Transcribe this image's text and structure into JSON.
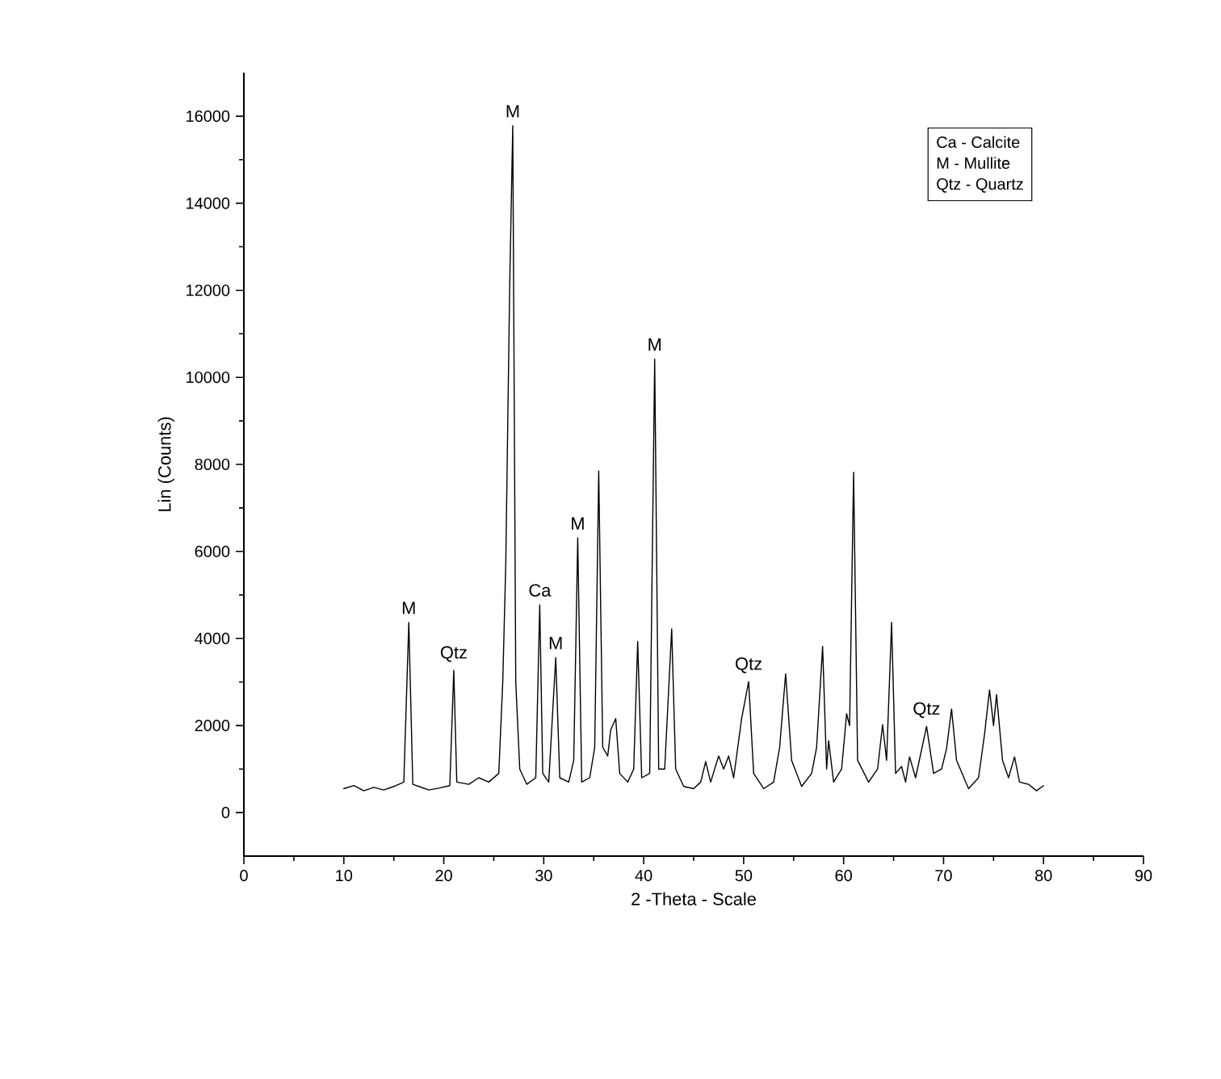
{
  "chart_data": {
    "type": "line",
    "xlabel": "2 -Theta - Scale",
    "ylabel": "Lin (Counts)",
    "xlim": [
      0,
      90
    ],
    "xticks": [
      0,
      10,
      20,
      30,
      40,
      50,
      60,
      70,
      80,
      90
    ],
    "ylim": [
      -1000,
      17000
    ],
    "yticks": [
      0,
      2000,
      4000,
      6000,
      8000,
      10000,
      12000,
      14000,
      16000
    ],
    "marker": "none",
    "line_style": "solid",
    "series": [
      {
        "color": "#000000",
        "x": [
          10,
          11,
          12,
          13,
          14,
          15,
          16.0,
          16.5,
          16.9,
          17.5,
          18.5,
          19.5,
          20.6,
          21.0,
          21.3,
          22.5,
          23.5,
          24.5,
          25.5,
          25.9,
          26.2,
          26.6,
          26.9,
          27.2,
          27.6,
          28.3,
          29.2,
          29.6,
          29.9,
          30.5,
          31.2,
          31.6,
          32.5,
          33.0,
          33.4,
          33.8,
          34.6,
          35.1,
          35.5,
          35.9,
          36.4,
          36.7,
          37.2,
          37.6,
          38.4,
          39.0,
          39.4,
          39.8,
          40.6,
          41.1,
          41.5,
          42.1,
          42.8,
          43.2,
          44.0,
          45.0,
          45.7,
          46.2,
          46.7,
          47.5,
          48.0,
          48.5,
          49.0,
          49.8,
          50.5,
          51.0,
          52.0,
          53.0,
          53.6,
          54.2,
          54.8,
          55.8,
          56.8,
          57.3,
          57.9,
          58.3,
          58.5,
          59.0,
          59.8,
          60.3,
          60.6,
          61.0,
          61.4,
          62.5,
          63.4,
          63.9,
          64.3,
          64.8,
          65.2,
          65.8,
          66.2,
          66.6,
          67.2,
          68.3,
          69.0,
          69.8,
          70.3,
          70.8,
          71.3,
          72.5,
          73.5,
          74.1,
          74.6,
          75.0,
          75.3,
          75.9,
          76.5,
          77.1,
          77.6,
          78.5,
          79.3,
          80.0
        ],
        "values": [
          550,
          620,
          500,
          580,
          520,
          600,
          700,
          4370,
          650,
          600,
          520,
          560,
          620,
          3270,
          700,
          650,
          800,
          700,
          900,
          3000,
          5700,
          12180,
          15780,
          3000,
          1000,
          650,
          800,
          4770,
          900,
          700,
          3560,
          800,
          700,
          1200,
          6310,
          700,
          800,
          1500,
          7850,
          1500,
          1300,
          1900,
          2160,
          900,
          700,
          1000,
          3930,
          800,
          900,
          10420,
          1000,
          1000,
          4220,
          1000,
          600,
          550,
          700,
          1170,
          700,
          1300,
          1000,
          1300,
          800,
          2160,
          3010,
          900,
          550,
          700,
          1500,
          3190,
          1200,
          600,
          900,
          1500,
          3820,
          1000,
          1650,
          700,
          1000,
          2270,
          2000,
          7820,
          1200,
          700,
          1000,
          2020,
          1200,
          4370,
          900,
          1060,
          700,
          1280,
          800,
          1980,
          900,
          1000,
          1470,
          2380,
          1200,
          550,
          800,
          1800,
          2820,
          2000,
          2710,
          1200,
          800,
          1280,
          700,
          650,
          500,
          620
        ]
      }
    ],
    "annotations": [
      {
        "text": "M",
        "x": 16.5,
        "y": 4370
      },
      {
        "text": "Qtz",
        "x": 21.0,
        "y": 3270
      },
      {
        "text": "M",
        "x": 26.9,
        "y": 15780
      },
      {
        "text": "Ca",
        "x": 29.6,
        "y": 4770
      },
      {
        "text": "M",
        "x": 31.2,
        "y": 3560
      },
      {
        "text": "M",
        "x": 33.4,
        "y": 6310
      },
      {
        "text": "M",
        "x": 41.1,
        "y": 10420
      },
      {
        "text": "Qtz",
        "x": 50.5,
        "y": 3010
      },
      {
        "text": "Qtz",
        "x": 68.3,
        "y": 1980
      },
      "Ca - Calcite",
      "M - Mullite",
      "Qtz - Quartz"
    ]
  }
}
